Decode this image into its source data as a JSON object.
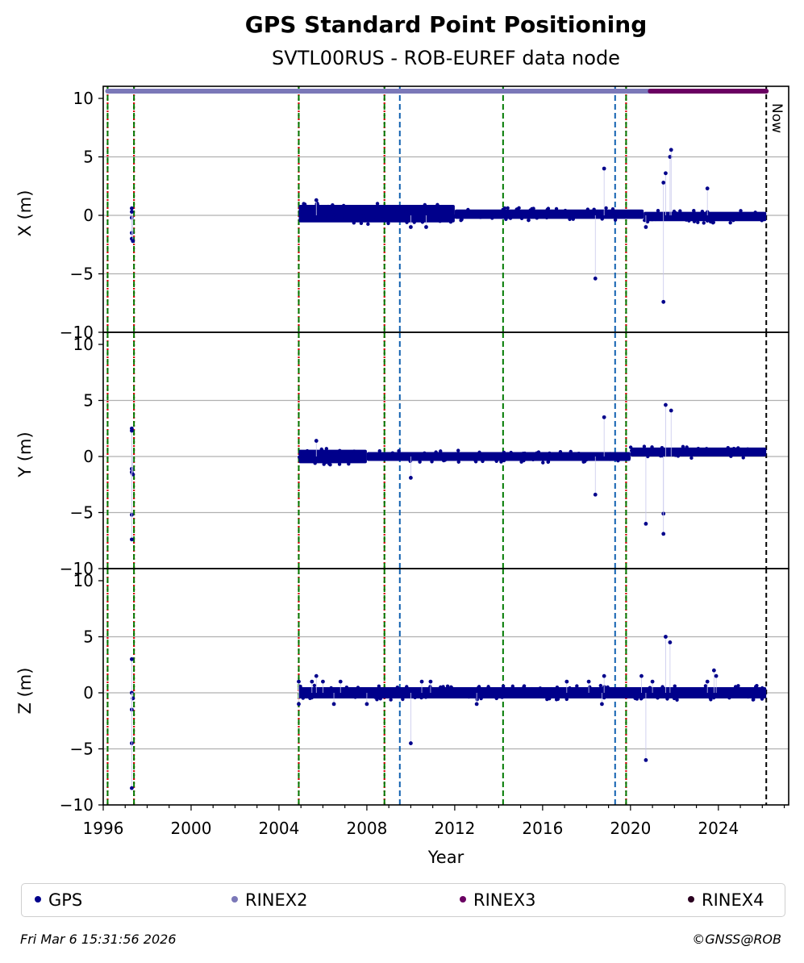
{
  "chart_data": {
    "type": "scatter",
    "title": "GPS Standard Point Positioning",
    "subtitle": "SVTL00RUS - ROB-EUREF data node",
    "xlabel": "Year",
    "xlim": [
      1996.0,
      2027.2
    ],
    "x_ticks": [
      "1996",
      "2000",
      "2004",
      "2008",
      "2012",
      "2016",
      "2020",
      "2024"
    ],
    "now_label": "Now",
    "now_x": 2026.18,
    "grid": true,
    "legend_position": "bottom",
    "colors": {
      "gps": "#00008b",
      "rinex2": "#7b78b8",
      "rinex3": "#6a0062",
      "rinex4": "#2a0020",
      "red_line": "#d00000",
      "green_line": "#007a00",
      "blue_line": "#1060b0"
    },
    "vertical_lines": {
      "red_dotted": [
        1996.2,
        1997.4,
        2004.9,
        2008.8,
        2019.8
      ],
      "green_dashed": [
        1996.2,
        1997.4,
        2004.9,
        2008.8,
        2014.2,
        2019.8
      ],
      "blue_dashed": [
        2009.5,
        2019.3
      ],
      "black_dashed": [
        2026.18
      ]
    },
    "availability": [
      {
        "name": "RINEX2",
        "start": 1996.2,
        "end": 2020.9
      },
      {
        "name": "RINEX3",
        "start": 2020.9,
        "end": 2026.18
      }
    ],
    "panels": [
      {
        "ylabel": "X (m)",
        "ylim": [
          -10,
          10
        ],
        "y_ticks": [
          "10",
          "5",
          "0",
          "−5",
          "−10"
        ],
        "band": [
          {
            "start": 2004.9,
            "end": 2012.0,
            "low": -0.6,
            "high": 0.9
          },
          {
            "start": 2012.0,
            "end": 2020.6,
            "low": -0.3,
            "high": 0.5
          },
          {
            "start": 2020.6,
            "end": 2026.18,
            "low": -0.5,
            "high": 0.3
          }
        ],
        "points": [
          [
            1997.3,
            0.6
          ],
          [
            1997.3,
            0.3
          ],
          [
            1997.3,
            -0.2
          ],
          [
            1997.3,
            -1.5
          ],
          [
            1997.3,
            -2.0
          ],
          [
            1997.35,
            -2.2
          ],
          [
            2005.7,
            1.3
          ],
          [
            2010.0,
            -1.0
          ],
          [
            2010.7,
            -1.0
          ],
          [
            2018.4,
            -5.4
          ],
          [
            2018.8,
            4.0
          ],
          [
            2020.7,
            -1.0
          ],
          [
            2021.5,
            -7.4
          ],
          [
            2021.5,
            2.8
          ],
          [
            2021.6,
            3.6
          ],
          [
            2021.8,
            5.0
          ],
          [
            2021.85,
            5.6
          ],
          [
            2023.5,
            2.3
          ]
        ]
      },
      {
        "ylabel": "Y (m)",
        "ylim": [
          -10,
          10
        ],
        "y_ticks": [
          "10",
          "5",
          "0",
          "−5",
          "−10"
        ],
        "band": [
          {
            "start": 2004.9,
            "end": 2008.0,
            "low": -0.6,
            "high": 0.6
          },
          {
            "start": 2008.0,
            "end": 2020.0,
            "low": -0.4,
            "high": 0.4
          },
          {
            "start": 2020.0,
            "end": 2026.18,
            "low": 0.0,
            "high": 0.8
          }
        ],
        "points": [
          [
            1997.3,
            2.5
          ],
          [
            1997.3,
            2.3
          ],
          [
            1997.3,
            -1.1
          ],
          [
            1997.3,
            -1.4
          ],
          [
            1997.35,
            -1.6
          ],
          [
            1997.3,
            -5.2
          ],
          [
            1997.3,
            -7.4
          ],
          [
            2005.7,
            1.4
          ],
          [
            2010.0,
            -1.9
          ],
          [
            2018.4,
            -3.4
          ],
          [
            2018.8,
            3.5
          ],
          [
            2020.7,
            -6.0
          ],
          [
            2021.5,
            -5.1
          ],
          [
            2021.5,
            -6.9
          ],
          [
            2021.6,
            4.6
          ],
          [
            2021.85,
            4.1
          ]
        ]
      },
      {
        "ylabel": "Z (m)",
        "ylim": [
          -10,
          10
        ],
        "y_ticks": [
          "10",
          "5",
          "0",
          "−5",
          "−10"
        ],
        "band": [
          {
            "start": 2004.9,
            "end": 2026.18,
            "low": -0.5,
            "high": 0.5
          }
        ],
        "points": [
          [
            1997.3,
            3.0
          ],
          [
            1997.3,
            0.0
          ],
          [
            1997.35,
            -0.5
          ],
          [
            1997.3,
            -1.5
          ],
          [
            1997.3,
            -4.5
          ],
          [
            1997.3,
            -8.5
          ],
          [
            2004.9,
            1.0
          ],
          [
            2004.9,
            -1.0
          ],
          [
            2005.5,
            1.0
          ],
          [
            2005.7,
            1.5
          ],
          [
            2006.0,
            1.0
          ],
          [
            2006.5,
            -1.0
          ],
          [
            2006.8,
            1.0
          ],
          [
            2008.0,
            -1.0
          ],
          [
            2010.0,
            -4.5
          ],
          [
            2010.5,
            1.0
          ],
          [
            2010.9,
            1.0
          ],
          [
            2013.0,
            -1.0
          ],
          [
            2017.1,
            1.0
          ],
          [
            2018.1,
            1.0
          ],
          [
            2018.7,
            -1.0
          ],
          [
            2018.8,
            1.5
          ],
          [
            2020.5,
            1.5
          ],
          [
            2020.7,
            -6.0
          ],
          [
            2021.0,
            1.0
          ],
          [
            2021.6,
            5.0
          ],
          [
            2021.8,
            4.5
          ],
          [
            2023.5,
            1.0
          ],
          [
            2023.8,
            2.0
          ],
          [
            2023.9,
            1.5
          ]
        ]
      }
    ]
  },
  "legend": {
    "items": [
      {
        "label": "GPS",
        "color": "#00008b"
      },
      {
        "label": "RINEX2",
        "color": "#7b78b8"
      },
      {
        "label": "RINEX3",
        "color": "#6a0062"
      },
      {
        "label": "RINEX4",
        "color": "#2a0020"
      }
    ]
  },
  "footer": {
    "date": "Fri Mar  6 15:31:56 2026",
    "copyright": "©GNSS@ROB"
  }
}
